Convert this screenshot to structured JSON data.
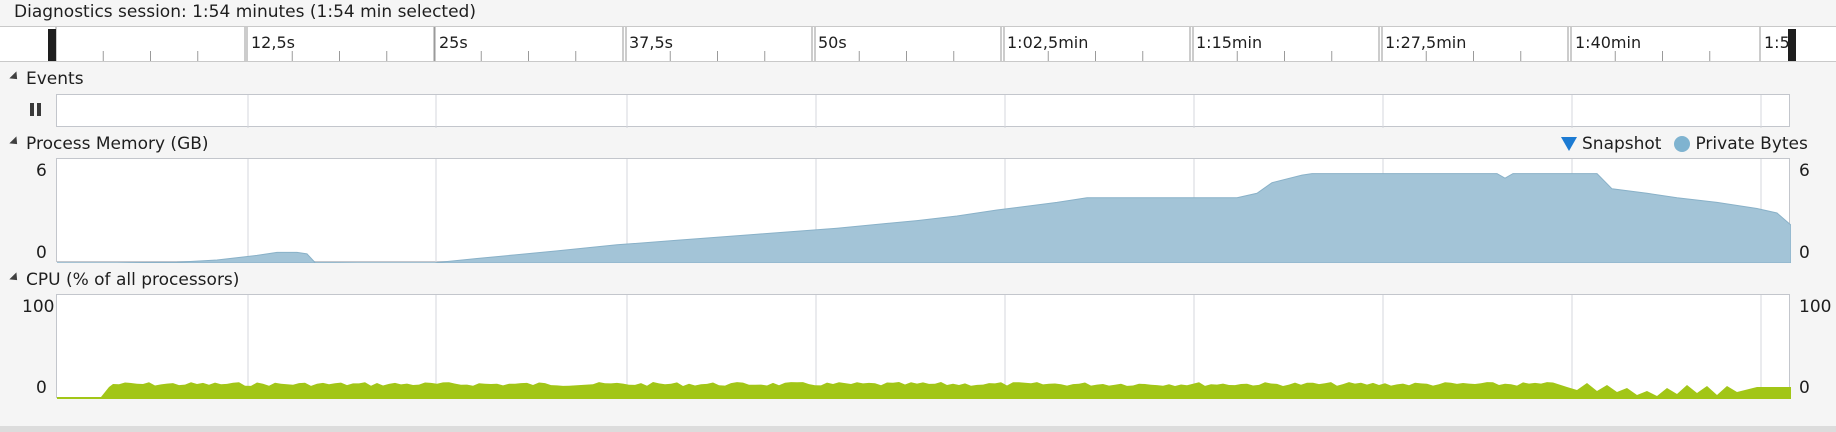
{
  "session": {
    "title": "Diagnostics session: 1:54 minutes (1:54 min selected)"
  },
  "ruler": {
    "ticks": [
      "12,5s",
      "25s",
      "37,5s",
      "50s",
      "1:02,5min",
      "1:15min",
      "1:27,5min",
      "1:40min",
      "1:5"
    ]
  },
  "events": {
    "title": "Events",
    "pause_icon": "pause-icon"
  },
  "memory": {
    "title": "Process Memory (GB)",
    "y_max": "6",
    "y_min": "0",
    "legend_snapshot": "Snapshot",
    "legend_private": "Private Bytes",
    "colors": {
      "fill": "#a3c4d7",
      "stroke": "#89b1c8",
      "snapshot": "#1c7bd3",
      "private": "#7fb3d0"
    },
    "series_shape": "area rising from 0 to ~6 GB then dropping"
  },
  "cpu": {
    "title": "CPU (% of all processors)",
    "y_max": "100",
    "y_min": "0",
    "colors": {
      "fill": "#a2c617"
    }
  }
}
